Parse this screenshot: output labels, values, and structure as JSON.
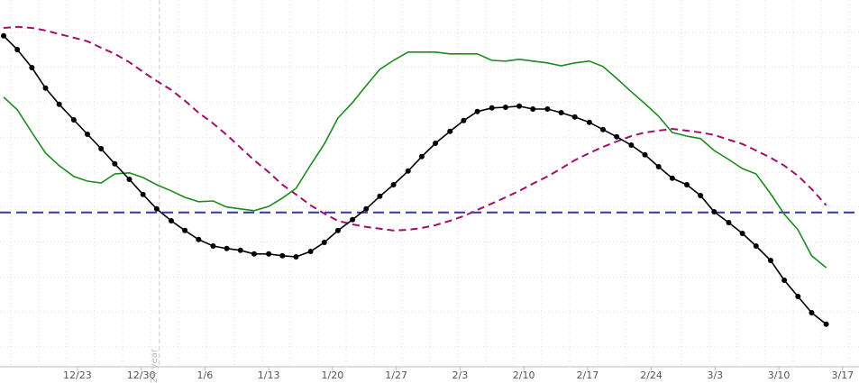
{
  "chart_data": {
    "type": "line",
    "xlim": [
      -8.5,
      85.8
    ],
    "ylim": [
      0,
      101.75
    ],
    "xticks": [
      {
        "value": 0,
        "label": "12/23"
      },
      {
        "value": 7,
        "label": "12/30"
      },
      {
        "value": 14,
        "label": "1/6"
      },
      {
        "value": 21,
        "label": "1/13"
      },
      {
        "value": 28,
        "label": "1/20"
      },
      {
        "value": 35,
        "label": "1/27"
      },
      {
        "value": 42,
        "label": "2/3"
      },
      {
        "value": 49,
        "label": "2/10"
      },
      {
        "value": 56,
        "label": "2/17"
      },
      {
        "value": 63,
        "label": "2/24"
      },
      {
        "value": 70,
        "label": "3/3"
      },
      {
        "value": 77,
        "label": "3/10"
      },
      {
        "value": 84,
        "label": "3/17"
      }
    ],
    "year_marker": {
      "value": 9,
      "label": "2024 year"
    },
    "reference_line": {
      "value": 42.8,
      "color": "#3535a8"
    },
    "grid": true,
    "x": [
      -8.1,
      -6.6,
      -5.0,
      -3.5,
      -2.0,
      -0.4,
      1.1,
      2.6,
      4.1,
      5.7,
      7.2,
      8.7,
      10.3,
      11.8,
      13.3,
      14.9,
      16.4,
      17.9,
      19.4,
      21.0,
      22.5,
      24.0,
      25.6,
      27.1,
      28.6,
      30.2,
      31.7,
      33.2,
      34.7,
      36.3,
      37.8,
      39.3,
      40.9,
      42.4,
      43.9,
      45.5,
      47.0,
      48.5,
      50.0,
      51.6,
      53.1,
      54.6,
      56.2,
      57.7,
      59.2,
      60.8,
      62.3,
      63.8,
      65.3,
      66.9,
      68.4,
      69.9,
      71.5,
      73.0,
      74.5,
      76.1,
      77.6,
      79.1,
      80.6,
      82.2
    ],
    "series": [
      {
        "color": "#a0106a",
        "dashed": true,
        "markers": false,
        "values": [
          94,
          94.3,
          94,
          93.3,
          92.3,
          91.3,
          90.3,
          88.5,
          86.8,
          84.5,
          81.8,
          79.3,
          76.8,
          73.8,
          70.5,
          67.5,
          64.3,
          60.8,
          57.3,
          54,
          50.5,
          47.8,
          44.8,
          42.5,
          40.5,
          39.5,
          38.8,
          38.3,
          37.8,
          38,
          38.5,
          39.3,
          40.5,
          41.8,
          43.5,
          45.3,
          47,
          48.8,
          50.8,
          52.8,
          55,
          57.3,
          59.3,
          61,
          62.5,
          64,
          65,
          65.5,
          66,
          65.5,
          65,
          64.3,
          63,
          61.8,
          60,
          58,
          55.8,
          53,
          49.3,
          44.8
        ]
      },
      {
        "color": "#1e8a1e",
        "dashed": false,
        "markers": false,
        "values": [
          74.8,
          71.3,
          65,
          59.3,
          55.8,
          52.8,
          51.5,
          51,
          53.5,
          53.8,
          52.5,
          50.5,
          48.8,
          47,
          45.8,
          46,
          44.3,
          43.8,
          43.3,
          44.5,
          46.8,
          49.5,
          56,
          61.8,
          69,
          73.3,
          78,
          82.5,
          85,
          87.3,
          87.3,
          87.3,
          86.8,
          86.8,
          86.8,
          85,
          84.8,
          85.3,
          84.8,
          84.3,
          83.5,
          84.3,
          84.8,
          83.3,
          80,
          76.3,
          73,
          69.5,
          65,
          64,
          63.3,
          60,
          57.5,
          55,
          53.5,
          48,
          42.3,
          38,
          30.8,
          27.5
        ]
      },
      {
        "color": "#000000",
        "dashed": false,
        "markers": true,
        "values": [
          91.8,
          88,
          83,
          77.3,
          72.8,
          68.5,
          64.5,
          60.5,
          56.3,
          52,
          47.8,
          43.8,
          40.5,
          37.8,
          35.3,
          33.5,
          32.8,
          32.3,
          31.3,
          31.3,
          30.8,
          30.5,
          32,
          34.5,
          37.8,
          40.8,
          43.8,
          47.3,
          50.5,
          54.3,
          58.3,
          62,
          65.3,
          68.3,
          70.8,
          71.8,
          72,
          72.3,
          71.5,
          71.5,
          70.5,
          69.3,
          67.8,
          65.8,
          63.8,
          61.5,
          58.8,
          55.5,
          52.3,
          50.5,
          47.5,
          43,
          40,
          37,
          33.5,
          29.5,
          24,
          19.5,
          15,
          11.8
        ]
      }
    ]
  }
}
